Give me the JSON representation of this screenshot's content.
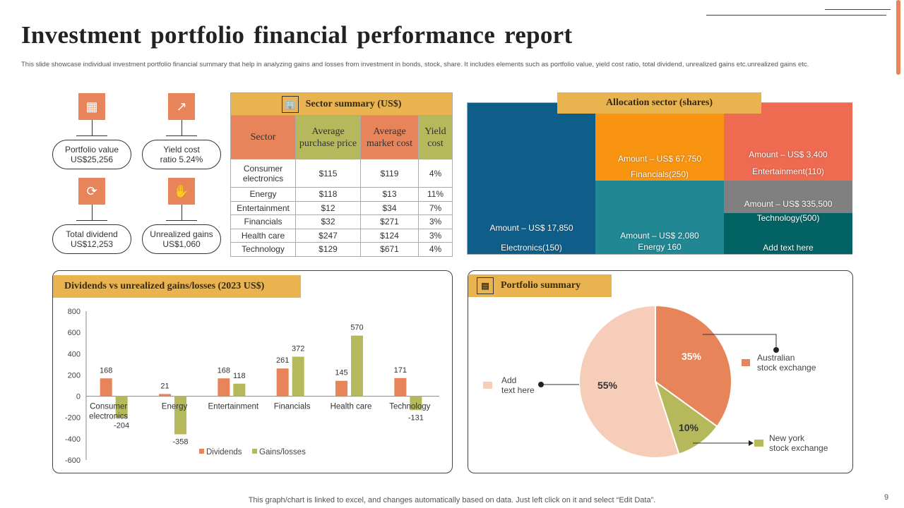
{
  "title": "Investment portfolio financial performance report",
  "subtitle": "This slide showcase individual investment portfolio financial summary that help in analyzing gains and losses from investment in bonds, stock, share. It includes elements such as portfolio value, yield cost ratio, total dividend, unrealized gains etc.unrealized gains etc.",
  "kpis": [
    {
      "line1": "Portfolio value",
      "line2": "US$25,256",
      "icon": "portfolio-icon"
    },
    {
      "line1": "Yield cost",
      "line2": "ratio 5.24%",
      "icon": "growth-chart-icon"
    },
    {
      "line1": "Total dividend",
      "line2": "US$12,253",
      "icon": "dividend-cycle-icon"
    },
    {
      "line1": "Unrealized gains",
      "line2": "US$1,060",
      "icon": "hand-money-icon"
    }
  ],
  "sector_table": {
    "title": "Sector summary  (US$)",
    "headers": [
      "Sector",
      "Average purchase price",
      "Average market cost",
      "Yield cost"
    ],
    "rows": [
      [
        "Consumer electronics",
        "$115",
        "$119",
        "4%"
      ],
      [
        "Energy",
        "$118",
        "$13",
        "11%"
      ],
      [
        "Entertainment",
        "$12",
        "$34",
        "7%"
      ],
      [
        "Financials",
        "$32",
        "$271",
        "3%"
      ],
      [
        "Health care",
        "$247",
        "$124",
        "3%"
      ],
      [
        "Technology",
        "$129",
        "$671",
        "4%"
      ]
    ]
  },
  "allocation": {
    "title": "Allocation  sector (shares)",
    "tiles": [
      {
        "amount": "Amount – US$ 17,850",
        "label": "Electronics(150)",
        "color": "#0F5E8A"
      },
      {
        "amount": "Amount – US$ 67,750",
        "label": "Financials(250)",
        "color": "#F89410"
      },
      {
        "amount": "Amount – US$ 2,080",
        "label": "Energy 160",
        "color": "#208793"
      },
      {
        "amount": "Amount – US$ 3,400",
        "label": "Entertainment(110)",
        "color": "#EE6A50"
      },
      {
        "amount": "Amount – US$ 335,500",
        "label": "",
        "color": "#808080"
      },
      {
        "amount": "Technology(500)",
        "label": "Add text here",
        "color": "#036364"
      }
    ]
  },
  "chart_data": [
    {
      "type": "bar",
      "title": "Dividends vs unrealized  gains/losses (2023 US$)",
      "categories": [
        "Consumer electronics",
        "Energy",
        "Entertainment",
        "Financials",
        "Health care",
        "Technology"
      ],
      "series": [
        {
          "name": "Dividends",
          "values": [
            168,
            21,
            168,
            261,
            145,
            171
          ],
          "color": "#E8845A"
        },
        {
          "name": "Gains/losses",
          "values": [
            -204,
            -358,
            118,
            372,
            570,
            -131
          ],
          "color": "#B5B95B"
        }
      ],
      "ylim": [
        -600,
        800
      ],
      "yticks": [
        "800",
        "600",
        "400",
        "200",
        "0",
        "-200",
        "-400",
        "-600"
      ],
      "legend": "bottom",
      "grid": false
    },
    {
      "type": "pie",
      "title": "Portfolio  summary",
      "slices": [
        {
          "label": "Australian stock exchange",
          "value": 35,
          "text": "35%",
          "color": "#E8845A"
        },
        {
          "label": "New york stock exchange",
          "value": 10,
          "text": "10%",
          "color": "#B5B95B"
        },
        {
          "label": "Add text here",
          "value": 55,
          "text": "55%",
          "color": "#F5CDB8"
        }
      ]
    }
  ],
  "pie_labels": {
    "aus1": "Australian",
    "aus2": "stock exchange",
    "ny1": "New york",
    "ny2": "stock exchange",
    "add1": "Add",
    "add2": "text here"
  },
  "footer": "This graph/chart is linked to excel,  and changes automatically based on data. Just left click on it and select “Edit Data”.",
  "page_number": "9",
  "colors": {
    "accent": "#E8845A",
    "header": "#E9B450",
    "green": "#B5B95B"
  }
}
